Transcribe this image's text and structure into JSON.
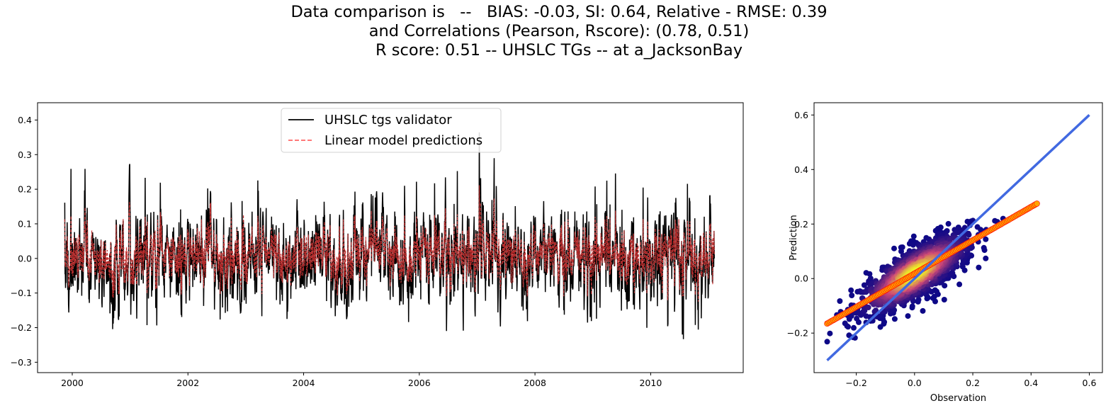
{
  "title_lines": [
    "Data comparison is   --   BIAS: -0.03, SI: 0.64, Relative - RMSE: 0.39",
    "and Correlations (Pearson, Rscore): (0.78, 0.51)",
    "R score: 0.51 -- UHSLC TGs -- at a_JacksonBay"
  ],
  "colors": {
    "observed": "#000000",
    "predicted": "#ff6666",
    "predicted_dense": "#8b0000",
    "identity_line": "#4169e1",
    "fit_points": "#ffa500",
    "fit_edge": "#ff0000",
    "density_low": "#0d0887",
    "density_high": "#f0f921"
  },
  "chart_data": [
    {
      "type": "line",
      "xlim": [
        1999.4,
        2011.6
      ],
      "ylim": [
        -0.33,
        0.45
      ],
      "xticks": [
        2000,
        2002,
        2004,
        2006,
        2008,
        2010
      ],
      "xtick_labels": [
        "2000",
        "2002",
        "2004",
        "2006",
        "2008",
        "2010"
      ],
      "yticks": [
        -0.3,
        -0.2,
        -0.1,
        0.0,
        0.1,
        0.2,
        0.3,
        0.4
      ],
      "ytick_labels": [
        "−0.3",
        "−0.2",
        "−0.1",
        "0.0",
        "0.1",
        "0.2",
        "0.3",
        "0.4"
      ],
      "legend_position": "upper-center",
      "series": [
        {
          "name": "UHSLC tgs validator",
          "style": "solid",
          "x_start": 1999.87,
          "x_end": 2011.1,
          "range": [
            -0.3,
            0.4
          ]
        },
        {
          "name": "Linear model predictions",
          "style": "dashed",
          "x_start": 1999.87,
          "x_end": 2011.1,
          "range": [
            -0.13,
            0.25
          ]
        }
      ]
    },
    {
      "type": "scatter",
      "xlabel": "Observation",
      "ylabel": "Prediction",
      "xlim": [
        -0.345,
        0.645
      ],
      "ylim": [
        -0.345,
        0.645
      ],
      "xticks": [
        -0.2,
        0.0,
        0.2,
        0.4,
        0.6
      ],
      "xtick_labels": [
        "−0.2",
        "0.0",
        "0.2",
        "0.4",
        "0.6"
      ],
      "yticks": [
        -0.2,
        0.0,
        0.2,
        0.4,
        0.6
      ],
      "ytick_labels": [
        "−0.2",
        "0.0",
        "0.2",
        "0.4",
        "0.6"
      ],
      "identity_line": {
        "x": [
          -0.3,
          0.6
        ],
        "y": [
          -0.3,
          0.6
        ]
      },
      "fit_line": {
        "x": [
          -0.3,
          0.42
        ],
        "y": [
          -0.165,
          0.275
        ]
      },
      "cloud": {
        "x_range": [
          -0.3,
          0.42
        ],
        "y_range": [
          -0.165,
          0.275
        ]
      }
    }
  ]
}
